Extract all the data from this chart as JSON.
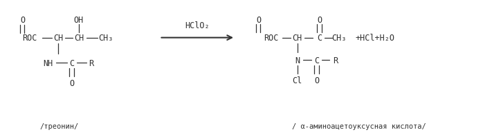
{
  "background_color": "#ffffff",
  "fig_width": 6.98,
  "fig_height": 2.03,
  "dpi": 100,
  "reactant_label": "/треонин/",
  "product_label": "/ α-аминоацетоуксусная кислота/",
  "reagent_label": "HClO₂",
  "font_size": 8.5,
  "small_font_size": 7.5
}
